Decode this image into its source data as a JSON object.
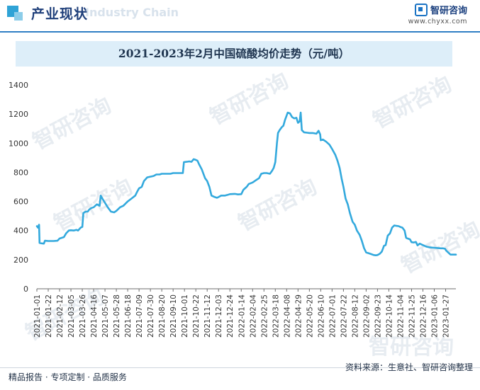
{
  "header": {
    "section_title": "产业现状",
    "section_watermark": "Industry Chain",
    "brand_name": "智研咨询",
    "brand_url": "www.chyxx.com"
  },
  "watermark_text": "智研咨询",
  "footer": {
    "left": "精品报告 · 专项定制 · 品质服务",
    "right": "资料来源：生意社、智研咨询整理"
  },
  "colors": {
    "line": "#33a9dd",
    "accent": "#2f7fc4",
    "title_bg": "#ddeef9"
  },
  "chart_data": {
    "type": "line",
    "title": "2021-2023年2月中国硫酸均价走势（元/吨）",
    "xlabel": "",
    "ylabel": "",
    "ylim": [
      0,
      1400
    ],
    "yticks": [
      0,
      200,
      400,
      600,
      800,
      1000,
      1200,
      1400
    ],
    "grid": false,
    "legend": "none",
    "xtick_labels": [
      "2021-01-01",
      "2021-01-22",
      "2021-02-12",
      "2021-03-05",
      "2021-03-26",
      "2021-04-16",
      "2021-05-07",
      "2021-05-28",
      "2021-06-18",
      "2021-07-09",
      "2021-07-30",
      "2021-08-20",
      "2021-09-10",
      "2021-10-01",
      "2021-10-22",
      "2021-11-12",
      "2021-12-03",
      "2021-12-24",
      "2022-01-14",
      "2022-02-04",
      "2022-02-25",
      "2022-03-18",
      "2022-04-08",
      "2022-04-29",
      "2022-05-20",
      "2022-06-10",
      "2022-07-01",
      "2022-07-22",
      "2022-08-12",
      "2022-09-02",
      "2022-09-23",
      "2022-10-14",
      "2022-11-04",
      "2022-11-25",
      "2022-12-16",
      "2023-01-06",
      "2023-01-27"
    ],
    "series": [
      {
        "name": "",
        "points": [
          [
            "2021-01-01",
            430
          ],
          [
            "2021-01-03",
            420
          ],
          [
            "2021-01-05",
            440
          ],
          [
            "2021-01-06",
            315
          ],
          [
            "2021-01-10",
            312
          ],
          [
            "2021-01-14",
            310
          ],
          [
            "2021-01-16",
            330
          ],
          [
            "2021-01-22",
            328
          ],
          [
            "2021-02-01",
            328
          ],
          [
            "2021-02-08",
            330
          ],
          [
            "2021-02-12",
            345
          ],
          [
            "2021-02-20",
            355
          ],
          [
            "2021-02-24",
            380
          ],
          [
            "2021-03-01",
            400
          ],
          [
            "2021-03-05",
            402
          ],
          [
            "2021-03-10",
            400
          ],
          [
            "2021-03-15",
            405
          ],
          [
            "2021-03-18",
            400
          ],
          [
            "2021-03-23",
            420
          ],
          [
            "2021-03-26",
            425
          ],
          [
            "2021-03-28",
            520
          ],
          [
            "2021-04-01",
            530
          ],
          [
            "2021-04-05",
            530
          ],
          [
            "2021-04-08",
            545
          ],
          [
            "2021-04-12",
            555
          ],
          [
            "2021-04-16",
            560
          ],
          [
            "2021-04-22",
            580
          ],
          [
            "2021-04-27",
            570
          ],
          [
            "2021-04-29",
            640
          ],
          [
            "2021-05-02",
            620
          ],
          [
            "2021-05-07",
            590
          ],
          [
            "2021-05-12",
            560
          ],
          [
            "2021-05-18",
            530
          ],
          [
            "2021-05-24",
            525
          ],
          [
            "2021-05-28",
            535
          ],
          [
            "2021-06-04",
            560
          ],
          [
            "2021-06-10",
            570
          ],
          [
            "2021-06-18",
            600
          ],
          [
            "2021-06-25",
            620
          ],
          [
            "2021-07-02",
            640
          ],
          [
            "2021-07-06",
            670
          ],
          [
            "2021-07-09",
            690
          ],
          [
            "2021-07-14",
            700
          ],
          [
            "2021-07-18",
            740
          ],
          [
            "2021-07-24",
            765
          ],
          [
            "2021-07-30",
            770
          ],
          [
            "2021-08-05",
            775
          ],
          [
            "2021-08-10",
            785
          ],
          [
            "2021-08-16",
            785
          ],
          [
            "2021-08-20",
            790
          ],
          [
            "2021-08-28",
            790
          ],
          [
            "2021-09-05",
            790
          ],
          [
            "2021-09-10",
            795
          ],
          [
            "2021-09-20",
            795
          ],
          [
            "2021-09-28",
            795
          ],
          [
            "2021-09-30",
            870
          ],
          [
            "2021-10-05",
            872
          ],
          [
            "2021-10-10",
            875
          ],
          [
            "2021-10-14",
            872
          ],
          [
            "2021-10-18",
            890
          ],
          [
            "2021-10-22",
            885
          ],
          [
            "2021-10-25",
            880
          ],
          [
            "2021-10-28",
            855
          ],
          [
            "2021-11-02",
            820
          ],
          [
            "2021-11-08",
            760
          ],
          [
            "2021-11-12",
            740
          ],
          [
            "2021-11-16",
            700
          ],
          [
            "2021-11-20",
            640
          ],
          [
            "2021-11-26",
            630
          ],
          [
            "2021-11-30",
            625
          ],
          [
            "2021-12-03",
            630
          ],
          [
            "2021-12-08",
            640
          ],
          [
            "2021-12-15",
            640
          ],
          [
            "2021-12-20",
            645
          ],
          [
            "2021-12-24",
            650
          ],
          [
            "2022-01-02",
            652
          ],
          [
            "2022-01-08",
            648
          ],
          [
            "2022-01-14",
            650
          ],
          [
            "2022-01-18",
            680
          ],
          [
            "2022-01-24",
            700
          ],
          [
            "2022-01-28",
            720
          ],
          [
            "2022-02-04",
            730
          ],
          [
            "2022-02-10",
            745
          ],
          [
            "2022-02-16",
            760
          ],
          [
            "2022-02-20",
            790
          ],
          [
            "2022-02-25",
            795
          ],
          [
            "2022-03-02",
            795
          ],
          [
            "2022-03-08",
            790
          ],
          [
            "2022-03-12",
            810
          ],
          [
            "2022-03-15",
            830
          ],
          [
            "2022-03-18",
            870
          ],
          [
            "2022-03-21",
            1000
          ],
          [
            "2022-03-23",
            1070
          ],
          [
            "2022-03-26",
            1090
          ],
          [
            "2022-03-30",
            1110
          ],
          [
            "2022-04-02",
            1120
          ],
          [
            "2022-04-05",
            1160
          ],
          [
            "2022-04-08",
            1190
          ],
          [
            "2022-04-10",
            1210
          ],
          [
            "2022-04-14",
            1205
          ],
          [
            "2022-04-18",
            1180
          ],
          [
            "2022-04-22",
            1170
          ],
          [
            "2022-04-26",
            1175
          ],
          [
            "2022-04-29",
            1140
          ],
          [
            "2022-05-02",
            1150
          ],
          [
            "2022-05-04",
            1210
          ],
          [
            "2022-05-06",
            1090
          ],
          [
            "2022-05-10",
            1075
          ],
          [
            "2022-05-16",
            1072
          ],
          [
            "2022-05-20",
            1070
          ],
          [
            "2022-05-26",
            1070
          ],
          [
            "2022-06-02",
            1065
          ],
          [
            "2022-06-06",
            1085
          ],
          [
            "2022-06-09",
            1060
          ],
          [
            "2022-06-10",
            1020
          ],
          [
            "2022-06-14",
            1025
          ],
          [
            "2022-06-20",
            1010
          ],
          [
            "2022-06-26",
            990
          ],
          [
            "2022-07-01",
            960
          ],
          [
            "2022-07-07",
            920
          ],
          [
            "2022-07-11",
            880
          ],
          [
            "2022-07-15",
            830
          ],
          [
            "2022-07-19",
            750
          ],
          [
            "2022-07-22",
            700
          ],
          [
            "2022-07-26",
            620
          ],
          [
            "2022-07-30",
            580
          ],
          [
            "2022-08-03",
            520
          ],
          [
            "2022-08-08",
            460
          ],
          [
            "2022-08-12",
            440
          ],
          [
            "2022-08-16",
            400
          ],
          [
            "2022-08-21",
            370
          ],
          [
            "2022-08-25",
            330
          ],
          [
            "2022-08-29",
            280
          ],
          [
            "2022-09-02",
            250
          ],
          [
            "2022-09-06",
            245
          ],
          [
            "2022-09-10",
            240
          ],
          [
            "2022-09-16",
            232
          ],
          [
            "2022-09-20",
            230
          ],
          [
            "2022-09-23",
            232
          ],
          [
            "2022-09-27",
            240
          ],
          [
            "2022-10-01",
            255
          ],
          [
            "2022-10-05",
            295
          ],
          [
            "2022-10-08",
            300
          ],
          [
            "2022-10-12",
            365
          ],
          [
            "2022-10-16",
            380
          ],
          [
            "2022-10-20",
            420
          ],
          [
            "2022-10-24",
            435
          ],
          [
            "2022-10-28",
            432
          ],
          [
            "2022-11-01",
            430
          ],
          [
            "2022-11-04",
            425
          ],
          [
            "2022-11-08",
            420
          ],
          [
            "2022-11-12",
            400
          ],
          [
            "2022-11-15",
            350
          ],
          [
            "2022-11-18",
            345
          ],
          [
            "2022-11-22",
            340
          ],
          [
            "2022-11-25",
            320
          ],
          [
            "2022-11-29",
            318
          ],
          [
            "2022-12-03",
            322
          ],
          [
            "2022-12-06",
            298
          ],
          [
            "2022-12-10",
            310
          ],
          [
            "2022-12-16",
            300
          ],
          [
            "2022-12-22",
            290
          ],
          [
            "2022-12-28",
            285
          ],
          [
            "2023-01-02",
            283
          ],
          [
            "2023-01-06",
            282
          ],
          [
            "2023-01-12",
            280
          ],
          [
            "2023-01-18",
            278
          ],
          [
            "2023-01-22",
            278
          ],
          [
            "2023-01-26",
            275
          ],
          [
            "2023-01-28",
            262
          ],
          [
            "2023-02-05",
            235
          ],
          [
            "2023-02-15",
            235
          ]
        ]
      }
    ]
  }
}
